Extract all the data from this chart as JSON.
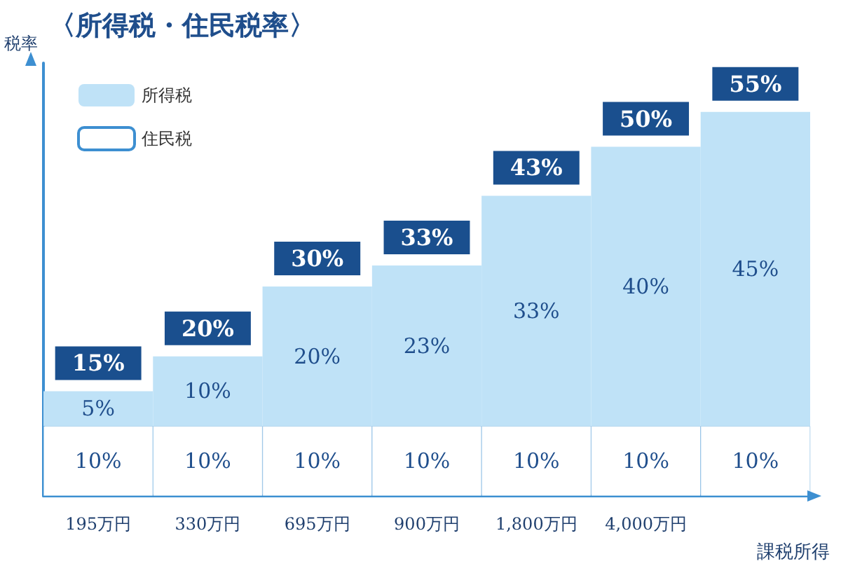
{
  "chart_data": {
    "type": "bar",
    "title": "〈所得税・住民税率〉",
    "xlabel": "課税所得",
    "ylabel": "税率",
    "categories": [
      "195万円",
      "330万円",
      "695万円",
      "900万円",
      "1,800万円",
      "4,000万円",
      null
    ],
    "stacked": true,
    "series": [
      {
        "name": "住民税",
        "color": "#ffffff",
        "values": [
          10,
          10,
          10,
          10,
          10,
          10,
          10
        ],
        "value_labels": [
          "10%",
          "10%",
          "10%",
          "10%",
          "10%",
          "10%",
          "10%"
        ]
      },
      {
        "name": "所得税",
        "color": "#bfe2f7",
        "values": [
          5,
          10,
          20,
          23,
          33,
          40,
          45
        ],
        "value_labels": [
          "5%",
          "10%",
          "20%",
          "23%",
          "33%",
          "40%",
          "45%"
        ]
      }
    ],
    "totals": [
      "15%",
      "20%",
      "30%",
      "33%",
      "43%",
      "50%",
      "55%"
    ],
    "tick_labels": "x",
    "grid": false,
    "legend": "top left"
  }
}
